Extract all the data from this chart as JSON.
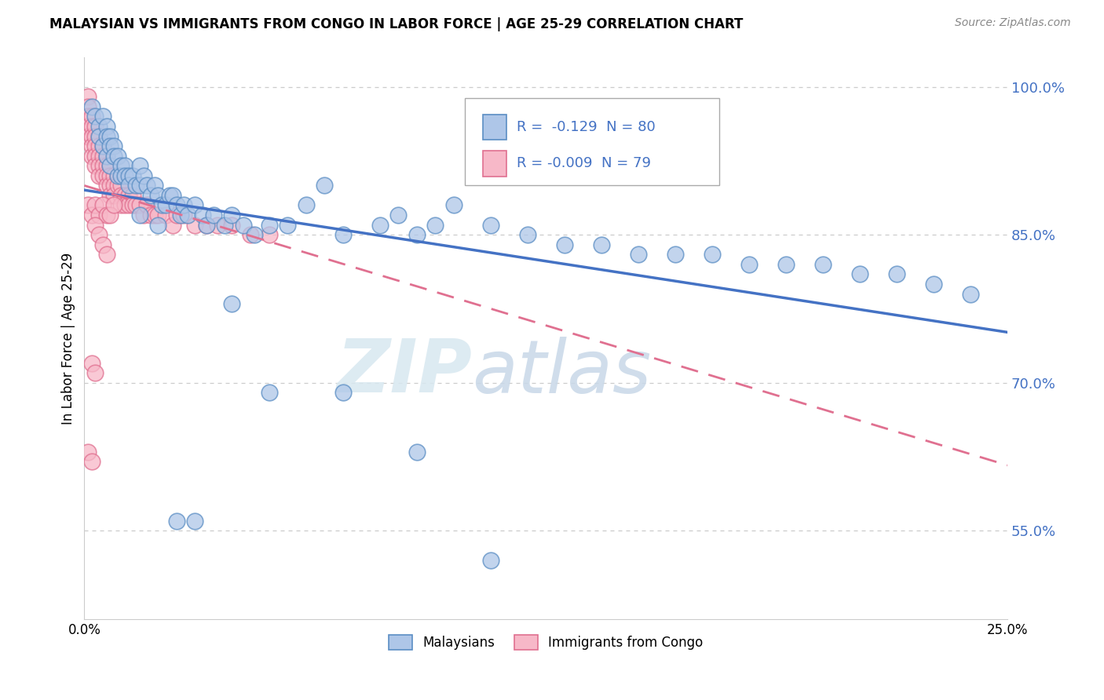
{
  "title": "MALAYSIAN VS IMMIGRANTS FROM CONGO IN LABOR FORCE | AGE 25-29 CORRELATION CHART",
  "source": "Source: ZipAtlas.com",
  "ylabel": "In Labor Force | Age 25-29",
  "watermark_line1": "ZIP",
  "watermark_line2": "atlas",
  "legend_blue_r": "-0.129",
  "legend_blue_n": "80",
  "legend_pink_r": "-0.009",
  "legend_pink_n": "79",
  "blue_face_color": "#aec6e8",
  "blue_edge_color": "#5b8ec4",
  "pink_face_color": "#f7b8c8",
  "pink_edge_color": "#e07090",
  "blue_line_color": "#4472c4",
  "pink_line_color": "#e07090",
  "tick_color": "#4472c4",
  "xlim": [
    0.0,
    0.25
  ],
  "ylim": [
    0.46,
    1.03
  ],
  "ytick_positions": [
    0.55,
    0.7,
    0.85,
    1.0
  ],
  "ytick_labels": [
    "55.0%",
    "70.0%",
    "85.0%",
    "100.0%"
  ],
  "blue_x": [
    0.002,
    0.003,
    0.004,
    0.004,
    0.005,
    0.005,
    0.006,
    0.006,
    0.006,
    0.007,
    0.007,
    0.007,
    0.008,
    0.008,
    0.009,
    0.009,
    0.01,
    0.01,
    0.011,
    0.011,
    0.012,
    0.012,
    0.013,
    0.014,
    0.015,
    0.015,
    0.016,
    0.017,
    0.018,
    0.019,
    0.02,
    0.021,
    0.022,
    0.023,
    0.024,
    0.025,
    0.026,
    0.027,
    0.028,
    0.03,
    0.032,
    0.033,
    0.035,
    0.038,
    0.04,
    0.043,
    0.046,
    0.05,
    0.055,
    0.06,
    0.065,
    0.07,
    0.08,
    0.085,
    0.09,
    0.095,
    0.1,
    0.11,
    0.12,
    0.13,
    0.14,
    0.15,
    0.16,
    0.17,
    0.18,
    0.19,
    0.2,
    0.21,
    0.22,
    0.23,
    0.015,
    0.02,
    0.025,
    0.03,
    0.04,
    0.05,
    0.07,
    0.09,
    0.11,
    0.24
  ],
  "blue_y": [
    0.98,
    0.97,
    0.96,
    0.95,
    0.97,
    0.94,
    0.96,
    0.95,
    0.93,
    0.95,
    0.94,
    0.92,
    0.94,
    0.93,
    0.93,
    0.91,
    0.92,
    0.91,
    0.92,
    0.91,
    0.91,
    0.9,
    0.91,
    0.9,
    0.92,
    0.9,
    0.91,
    0.9,
    0.89,
    0.9,
    0.89,
    0.88,
    0.88,
    0.89,
    0.89,
    0.88,
    0.87,
    0.88,
    0.87,
    0.88,
    0.87,
    0.86,
    0.87,
    0.86,
    0.87,
    0.86,
    0.85,
    0.86,
    0.86,
    0.88,
    0.9,
    0.85,
    0.86,
    0.87,
    0.85,
    0.86,
    0.88,
    0.86,
    0.85,
    0.84,
    0.84,
    0.83,
    0.83,
    0.83,
    0.82,
    0.82,
    0.82,
    0.81,
    0.81,
    0.8,
    0.87,
    0.86,
    0.56,
    0.56,
    0.78,
    0.69,
    0.69,
    0.63,
    0.52,
    0.79
  ],
  "pink_x": [
    0.001,
    0.001,
    0.001,
    0.001,
    0.001,
    0.002,
    0.002,
    0.002,
    0.002,
    0.002,
    0.003,
    0.003,
    0.003,
    0.003,
    0.003,
    0.004,
    0.004,
    0.004,
    0.004,
    0.004,
    0.005,
    0.005,
    0.005,
    0.005,
    0.006,
    0.006,
    0.006,
    0.006,
    0.007,
    0.007,
    0.007,
    0.007,
    0.008,
    0.008,
    0.008,
    0.009,
    0.009,
    0.01,
    0.01,
    0.01,
    0.011,
    0.011,
    0.012,
    0.012,
    0.013,
    0.013,
    0.014,
    0.015,
    0.016,
    0.017,
    0.018,
    0.019,
    0.02,
    0.022,
    0.024,
    0.025,
    0.027,
    0.03,
    0.033,
    0.036,
    0.04,
    0.045,
    0.05,
    0.001,
    0.002,
    0.003,
    0.004,
    0.005,
    0.006,
    0.007,
    0.008,
    0.003,
    0.004,
    0.005,
    0.006,
    0.002,
    0.003,
    0.001,
    0.002
  ],
  "pink_y": [
    0.99,
    0.98,
    0.97,
    0.96,
    0.95,
    0.97,
    0.96,
    0.95,
    0.94,
    0.93,
    0.96,
    0.95,
    0.94,
    0.93,
    0.92,
    0.95,
    0.94,
    0.93,
    0.92,
    0.91,
    0.94,
    0.93,
    0.92,
    0.91,
    0.93,
    0.92,
    0.91,
    0.9,
    0.92,
    0.91,
    0.9,
    0.89,
    0.91,
    0.9,
    0.89,
    0.91,
    0.9,
    0.9,
    0.89,
    0.88,
    0.89,
    0.88,
    0.89,
    0.88,
    0.89,
    0.88,
    0.88,
    0.88,
    0.87,
    0.88,
    0.87,
    0.87,
    0.87,
    0.87,
    0.86,
    0.87,
    0.87,
    0.86,
    0.86,
    0.86,
    0.86,
    0.85,
    0.85,
    0.88,
    0.87,
    0.88,
    0.87,
    0.88,
    0.87,
    0.87,
    0.88,
    0.86,
    0.85,
    0.84,
    0.83,
    0.72,
    0.71,
    0.63,
    0.62
  ]
}
